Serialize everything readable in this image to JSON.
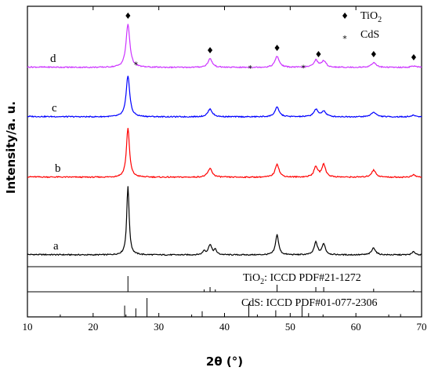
{
  "chart_data": {
    "type": "line",
    "xlabel": "2θ (°)",
    "ylabel": "Intensity/a. u.",
    "xlim": [
      10,
      70
    ],
    "x_ticks": [
      10,
      20,
      30,
      40,
      50,
      60,
      70
    ],
    "grid": false,
    "series": [
      {
        "name": "a",
        "color": "#000000",
        "peaks": [
          {
            "x": 25.3,
            "h": 88,
            "w": 0.22
          },
          {
            "x": 36.9,
            "h": 5,
            "w": 0.25
          },
          {
            "x": 37.8,
            "h": 13,
            "w": 0.3
          },
          {
            "x": 38.6,
            "h": 6,
            "w": 0.25
          },
          {
            "x": 48.0,
            "h": 26,
            "w": 0.28
          },
          {
            "x": 53.9,
            "h": 16,
            "w": 0.3
          },
          {
            "x": 55.1,
            "h": 14,
            "w": 0.3
          },
          {
            "x": 62.7,
            "h": 9,
            "w": 0.35
          },
          {
            "x": 68.8,
            "h": 4,
            "w": 0.3
          }
        ]
      },
      {
        "name": "b",
        "color": "#ff0000",
        "peaks": [
          {
            "x": 25.3,
            "h": 63,
            "w": 0.28
          },
          {
            "x": 37.8,
            "h": 11,
            "w": 0.4
          },
          {
            "x": 48.0,
            "h": 17,
            "w": 0.35
          },
          {
            "x": 53.9,
            "h": 13,
            "w": 0.35
          },
          {
            "x": 55.1,
            "h": 16,
            "w": 0.35
          },
          {
            "x": 62.7,
            "h": 9,
            "w": 0.4
          },
          {
            "x": 68.8,
            "h": 3,
            "w": 0.35
          }
        ]
      },
      {
        "name": "c",
        "color": "#0000ff",
        "peaks": [
          {
            "x": 25.3,
            "h": 53,
            "w": 0.32
          },
          {
            "x": 37.8,
            "h": 10,
            "w": 0.4
          },
          {
            "x": 48.0,
            "h": 12,
            "w": 0.4
          },
          {
            "x": 53.9,
            "h": 9,
            "w": 0.4
          },
          {
            "x": 55.1,
            "h": 7,
            "w": 0.4
          },
          {
            "x": 62.7,
            "h": 6,
            "w": 0.45
          },
          {
            "x": 68.8,
            "h": 2,
            "w": 0.4
          }
        ]
      },
      {
        "name": "d",
        "color": "#cc33ff",
        "peaks": [
          {
            "x": 25.3,
            "h": 55,
            "w": 0.35
          },
          {
            "x": 37.8,
            "h": 11,
            "w": 0.4
          },
          {
            "x": 48.0,
            "h": 14,
            "w": 0.4
          },
          {
            "x": 53.9,
            "h": 9,
            "w": 0.4
          },
          {
            "x": 55.1,
            "h": 8,
            "w": 0.4
          },
          {
            "x": 62.7,
            "h": 6,
            "w": 0.45
          },
          {
            "x": 68.8,
            "h": 2,
            "w": 0.4
          }
        ]
      }
    ],
    "legend": [
      {
        "symbol": "♦",
        "label_main": "TiO",
        "label_sub": "2"
      },
      {
        "symbol": "*",
        "label_main": "CdS",
        "label_sub": ""
      }
    ],
    "peak_markers": [
      {
        "symbol": "♦",
        "x": 25.3
      },
      {
        "symbol": "*",
        "x": 26.5
      },
      {
        "symbol": "♦",
        "x": 37.8
      },
      {
        "symbol": "*",
        "x": 43.9
      },
      {
        "symbol": "♦",
        "x": 48.0
      },
      {
        "symbol": "*",
        "x": 52.0
      },
      {
        "symbol": "♦",
        "x": 54.3
      },
      {
        "symbol": "♦",
        "x": 62.7
      },
      {
        "symbol": "♦",
        "x": 68.8
      }
    ],
    "references": [
      {
        "label_main": "TiO",
        "label_sub": "2",
        "label_rest": ": ICCD PDF#21-1272",
        "lines": [
          {
            "x": 25.3,
            "rel": 1.0
          },
          {
            "x": 36.9,
            "rel": 0.15
          },
          {
            "x": 37.8,
            "rel": 0.3
          },
          {
            "x": 38.6,
            "rel": 0.15
          },
          {
            "x": 48.0,
            "rel": 0.45
          },
          {
            "x": 53.9,
            "rel": 0.3
          },
          {
            "x": 55.1,
            "rel": 0.3
          },
          {
            "x": 62.7,
            "rel": 0.2
          },
          {
            "x": 68.8,
            "rel": 0.1
          }
        ]
      },
      {
        "label_main": "CdS",
        "label_sub": "",
        "label_rest": ": ICCD PDF#01-077-2306",
        "lines": [
          {
            "x": 24.8,
            "rel": 0.6
          },
          {
            "x": 26.5,
            "rel": 0.45
          },
          {
            "x": 28.2,
            "rel": 1.0
          },
          {
            "x": 36.6,
            "rel": 0.3
          },
          {
            "x": 43.7,
            "rel": 0.7
          },
          {
            "x": 47.8,
            "rel": 0.35
          },
          {
            "x": 51.8,
            "rel": 0.6
          },
          {
            "x": 52.8,
            "rel": 0.2
          },
          {
            "x": 66.8,
            "rel": 0.15
          }
        ]
      }
    ]
  }
}
